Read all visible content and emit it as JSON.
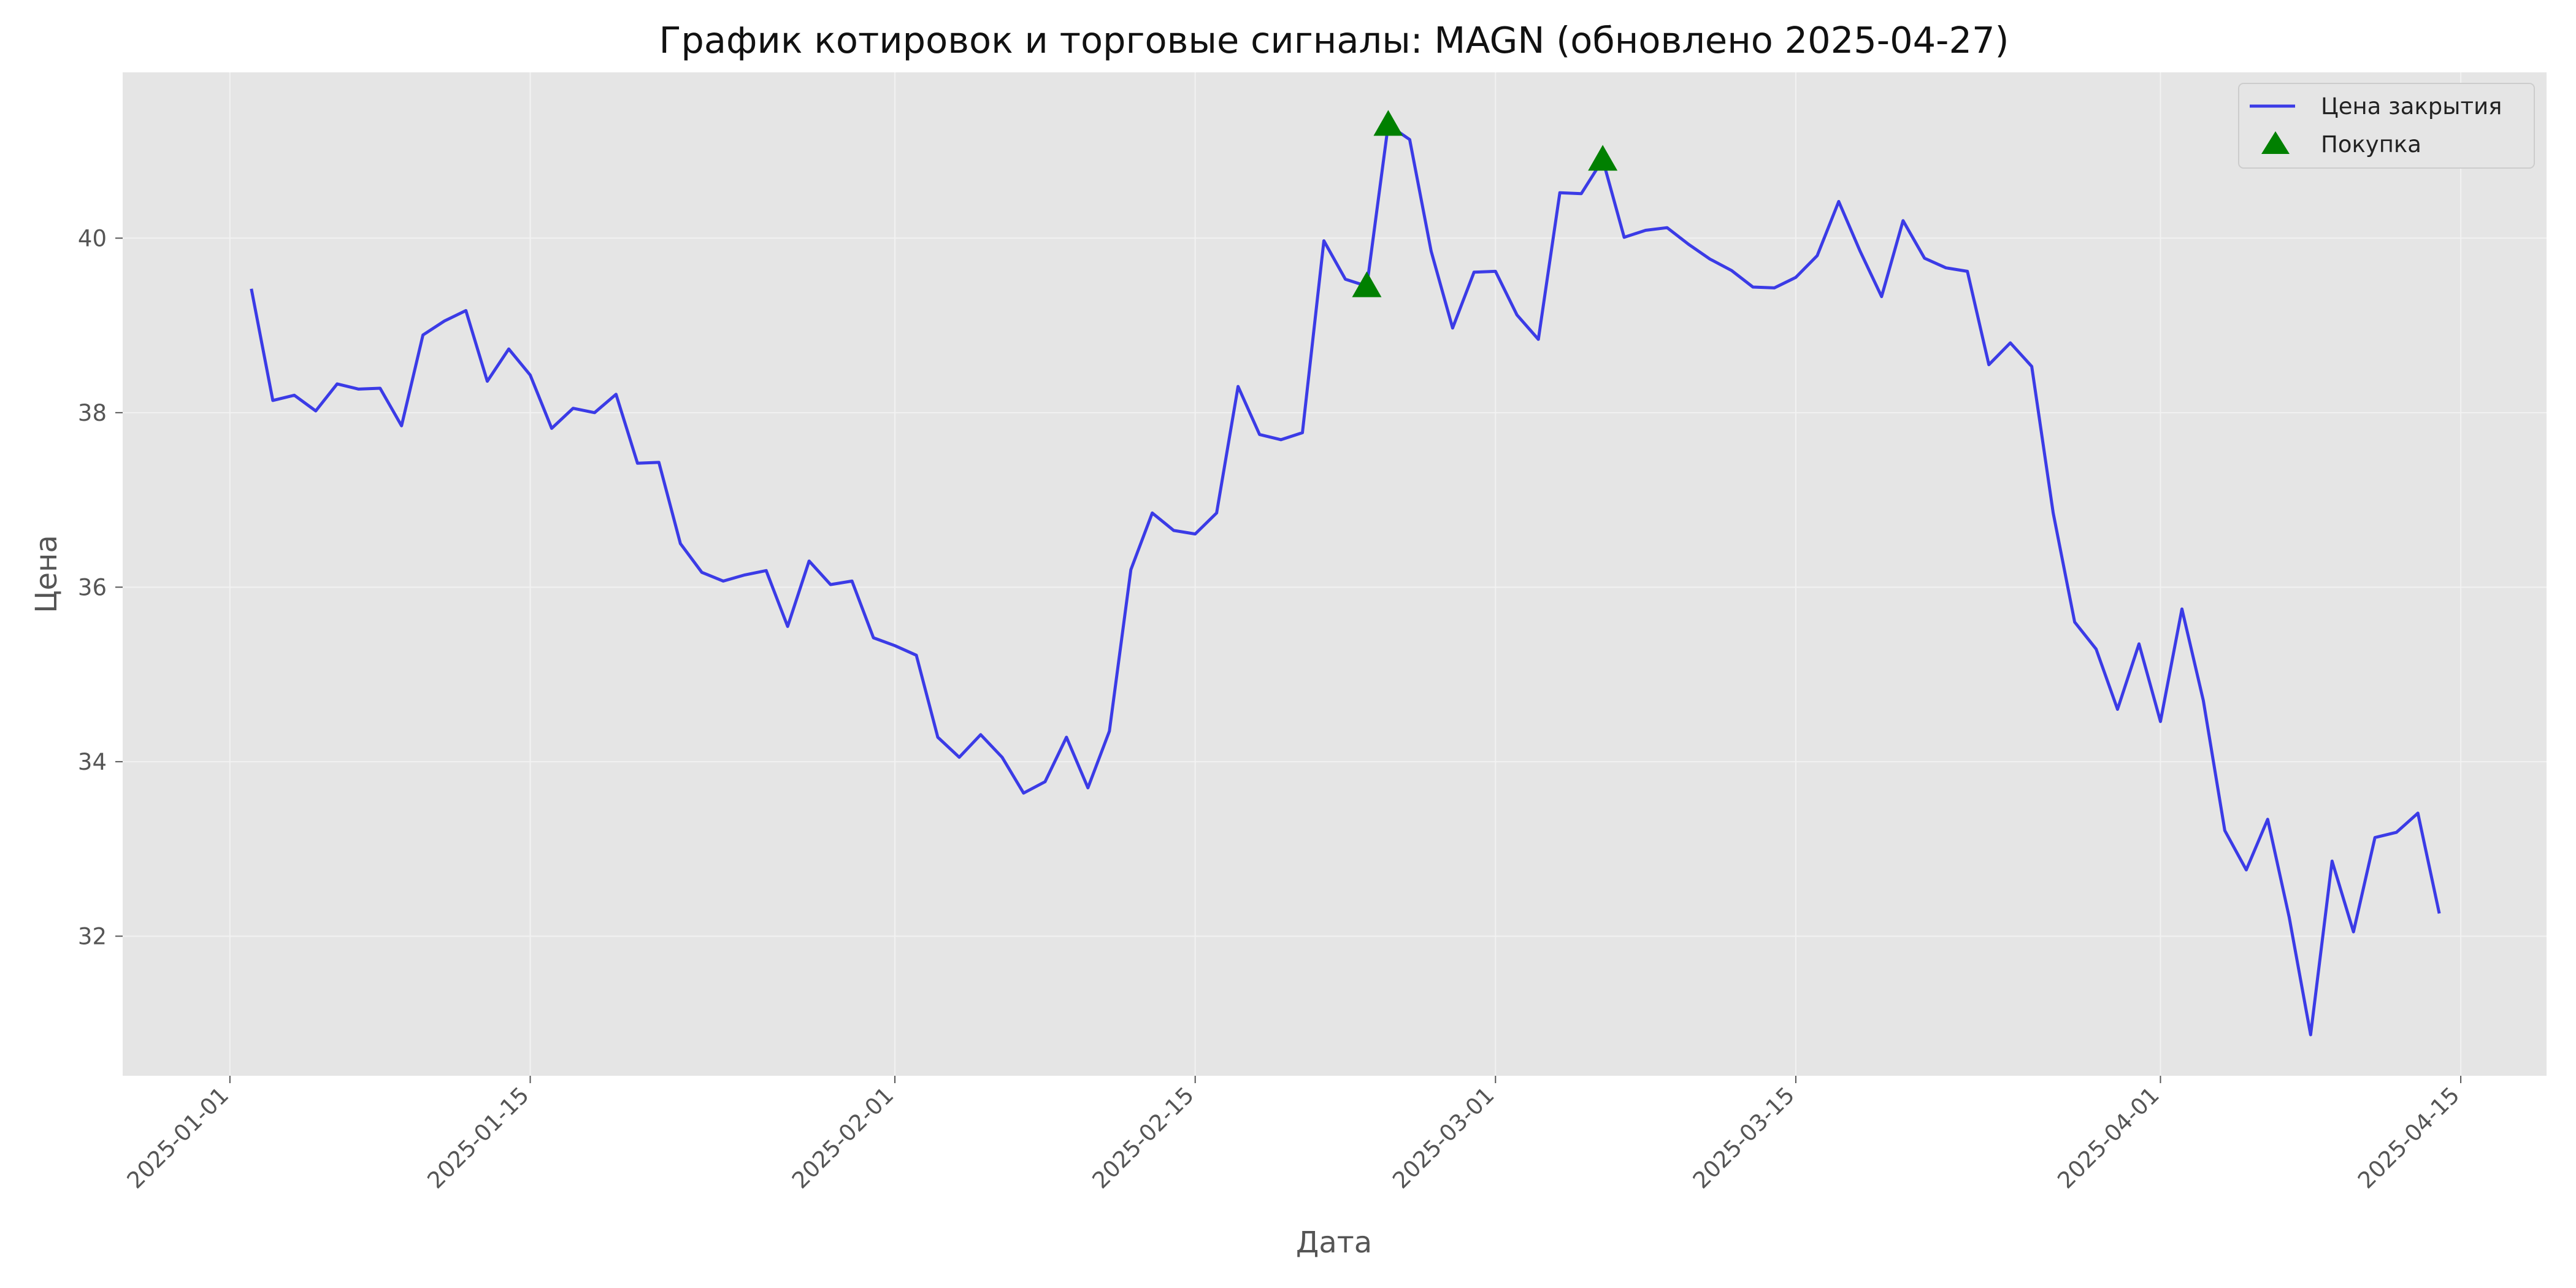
{
  "chart_data": {
    "type": "line",
    "title": "График котировок и торговые сигналы: MAGN (обновлено 2025-04-27)",
    "xlabel": "Дата",
    "ylabel": "Цена",
    "x_ticks": [
      "2025-01-01",
      "2025-01-15",
      "2025-02-01",
      "2025-02-15",
      "2025-03-01",
      "2025-03-15",
      "2025-04-01",
      "2025-04-15"
    ],
    "y_ticks": [
      32,
      34,
      36,
      38,
      40
    ],
    "xlim": [
      "2024-12-27",
      "2025-04-19"
    ],
    "ylim": [
      30.4,
      41.9
    ],
    "grid": true,
    "legend_position": "top-right",
    "series": [
      {
        "name": "Цена закрытия",
        "color": "#3b3be6",
        "points": [
          [
            "2025-01-02",
            39.42
          ],
          [
            "2025-01-03",
            38.14
          ],
          [
            "2025-01-04",
            38.2
          ],
          [
            "2025-01-05",
            38.02
          ],
          [
            "2025-01-06",
            38.33
          ],
          [
            "2025-01-07",
            38.27
          ],
          [
            "2025-01-08",
            38.28
          ],
          [
            "2025-01-09",
            37.85
          ],
          [
            "2025-01-10",
            38.89
          ],
          [
            "2025-01-11",
            39.05
          ],
          [
            "2025-01-12",
            39.17
          ],
          [
            "2025-01-13",
            38.36
          ],
          [
            "2025-01-14",
            38.73
          ],
          [
            "2025-01-15",
            38.43
          ],
          [
            "2025-01-16",
            37.82
          ],
          [
            "2025-01-17",
            38.05
          ],
          [
            "2025-01-18",
            38.0
          ],
          [
            "2025-01-19",
            38.21
          ],
          [
            "2025-01-20",
            37.42
          ],
          [
            "2025-01-21",
            37.43
          ],
          [
            "2025-01-22",
            36.5
          ],
          [
            "2025-01-23",
            36.17
          ],
          [
            "2025-01-24",
            36.07
          ],
          [
            "2025-01-25",
            36.14
          ],
          [
            "2025-01-26",
            36.19
          ],
          [
            "2025-01-27",
            35.55
          ],
          [
            "2025-01-28",
            36.3
          ],
          [
            "2025-01-29",
            36.03
          ],
          [
            "2025-01-30",
            36.07
          ],
          [
            "2025-01-31",
            35.42
          ],
          [
            "2025-02-01",
            35.33
          ],
          [
            "2025-02-02",
            35.22
          ],
          [
            "2025-02-03",
            34.28
          ],
          [
            "2025-02-04",
            34.05
          ],
          [
            "2025-02-05",
            34.31
          ],
          [
            "2025-02-06",
            34.05
          ],
          [
            "2025-02-07",
            33.64
          ],
          [
            "2025-02-08",
            33.77
          ],
          [
            "2025-02-09",
            34.28
          ],
          [
            "2025-02-10",
            33.7
          ],
          [
            "2025-02-11",
            34.35
          ],
          [
            "2025-02-12",
            36.2
          ],
          [
            "2025-02-13",
            36.85
          ],
          [
            "2025-02-14",
            36.65
          ],
          [
            "2025-02-15",
            36.61
          ],
          [
            "2025-02-16",
            36.85
          ],
          [
            "2025-02-17",
            38.3
          ],
          [
            "2025-02-18",
            37.75
          ],
          [
            "2025-02-19",
            37.69
          ],
          [
            "2025-02-20",
            37.77
          ],
          [
            "2025-02-21",
            39.97
          ],
          [
            "2025-02-22",
            39.53
          ],
          [
            "2025-02-23",
            39.45
          ],
          [
            "2025-02-24",
            41.3
          ],
          [
            "2025-02-25",
            41.13
          ],
          [
            "2025-02-26",
            39.85
          ],
          [
            "2025-02-27",
            38.97
          ],
          [
            "2025-02-28",
            39.61
          ],
          [
            "2025-03-01",
            39.62
          ],
          [
            "2025-03-02",
            39.12
          ],
          [
            "2025-03-03",
            38.84
          ],
          [
            "2025-03-04",
            40.52
          ],
          [
            "2025-03-05",
            40.51
          ],
          [
            "2025-03-06",
            40.9
          ],
          [
            "2025-03-07",
            40.01
          ],
          [
            "2025-03-08",
            40.09
          ],
          [
            "2025-03-09",
            40.12
          ],
          [
            "2025-03-10",
            39.93
          ],
          [
            "2025-03-11",
            39.76
          ],
          [
            "2025-03-12",
            39.63
          ],
          [
            "2025-03-13",
            39.44
          ],
          [
            "2025-03-14",
            39.43
          ],
          [
            "2025-03-15",
            39.55
          ],
          [
            "2025-03-16",
            39.8
          ],
          [
            "2025-03-17",
            40.42
          ],
          [
            "2025-03-18",
            39.85
          ],
          [
            "2025-03-19",
            39.33
          ],
          [
            "2025-03-20",
            40.2
          ],
          [
            "2025-03-21",
            39.77
          ],
          [
            "2025-03-22",
            39.66
          ],
          [
            "2025-03-23",
            39.62
          ],
          [
            "2025-03-24",
            38.55
          ],
          [
            "2025-03-25",
            38.8
          ],
          [
            "2025-03-26",
            38.53
          ],
          [
            "2025-03-27",
            36.85
          ],
          [
            "2025-03-28",
            35.6
          ],
          [
            "2025-03-29",
            35.29
          ],
          [
            "2025-03-30",
            34.6
          ],
          [
            "2025-03-31",
            35.35
          ],
          [
            "2025-04-01",
            34.46
          ],
          [
            "2025-04-02",
            35.75
          ],
          [
            "2025-04-03",
            34.7
          ],
          [
            "2025-04-04",
            33.21
          ],
          [
            "2025-04-05",
            32.76
          ],
          [
            "2025-04-06",
            33.34
          ],
          [
            "2025-04-07",
            32.22
          ],
          [
            "2025-04-08",
            30.87
          ],
          [
            "2025-04-09",
            32.86
          ],
          [
            "2025-04-10",
            32.05
          ],
          [
            "2025-04-11",
            33.13
          ],
          [
            "2025-04-12",
            33.19
          ],
          [
            "2025-04-13",
            33.41
          ],
          [
            "2025-04-14",
            32.26
          ]
        ]
      },
      {
        "name": "Покупка",
        "color": "#008000",
        "marker": "triangle-up",
        "points": [
          [
            "2025-02-23",
            39.45
          ],
          [
            "2025-02-24",
            41.3
          ],
          [
            "2025-03-06",
            40.9
          ]
        ]
      }
    ]
  },
  "colors": {
    "plot_background": "#e5e5e5",
    "grid": "#f2f2f2",
    "tick": "#555555"
  }
}
